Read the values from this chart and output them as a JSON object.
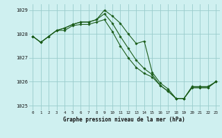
{
  "title": "Graphe pression niveau de la mer (hPa)",
  "bg_color": "#cff0f0",
  "grid_color": "#99cccc",
  "line_color": "#1a5c1a",
  "x_ticks": [
    0,
    1,
    2,
    3,
    4,
    5,
    6,
    7,
    8,
    9,
    10,
    11,
    12,
    13,
    14,
    15,
    16,
    17,
    18,
    19,
    20,
    21,
    22,
    23
  ],
  "xlim": [
    -0.5,
    23.5
  ],
  "ylim": [
    1024.8,
    1029.25
  ],
  "yticks": [
    1025,
    1026,
    1027,
    1028,
    1029
  ],
  "series": [
    [
      1027.9,
      1027.65,
      1027.9,
      1028.15,
      1028.25,
      1028.4,
      1028.5,
      1028.5,
      1028.6,
      1029.0,
      1028.75,
      1028.45,
      1028.0,
      1027.6,
      1027.7,
      1026.4,
      1025.95,
      1025.7,
      1025.3,
      1025.3,
      1025.8,
      1025.8,
      1025.8,
      1026.0
    ],
    [
      1027.9,
      1027.65,
      1027.9,
      1028.15,
      1028.25,
      1028.4,
      1028.5,
      1028.5,
      1028.6,
      1028.85,
      1028.45,
      1027.9,
      1027.4,
      1026.9,
      1026.55,
      1026.3,
      1025.85,
      1025.6,
      1025.3,
      1025.3,
      1025.75,
      1025.75,
      1025.75,
      1026.0
    ],
    [
      1027.9,
      1027.65,
      1027.9,
      1028.15,
      1028.15,
      1028.35,
      1028.4,
      1028.4,
      1028.5,
      1028.6,
      1028.1,
      1027.5,
      1027.0,
      1026.6,
      1026.35,
      1026.2,
      1025.85,
      1025.6,
      1025.3,
      1025.3,
      1025.75,
      1025.75,
      1025.75,
      1026.0
    ]
  ]
}
